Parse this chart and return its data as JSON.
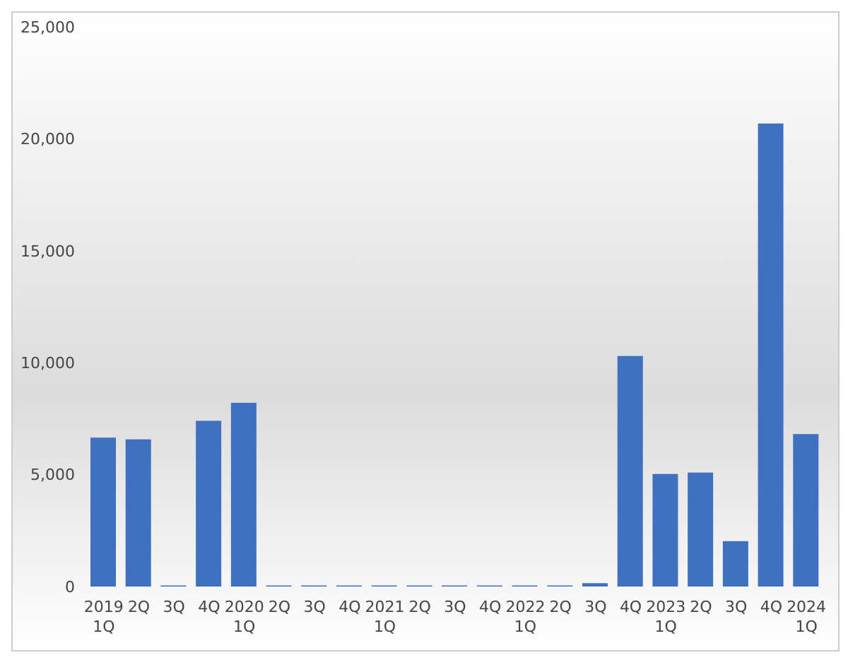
{
  "chart_data": {
    "type": "bar",
    "categories": [
      "2019\n1Q",
      "2Q",
      "3Q",
      "4Q",
      "2020\n1Q",
      "2Q",
      "3Q",
      "4Q",
      "2021\n1Q",
      "2Q",
      "3Q",
      "4Q",
      "2022\n1Q",
      "2Q",
      "3Q",
      "4Q",
      "2023\n1Q",
      "2Q",
      "3Q",
      "4Q",
      "2024\n1Q"
    ],
    "values": [
      6650,
      6570,
      50,
      7400,
      8210,
      50,
      50,
      50,
      50,
      50,
      50,
      50,
      50,
      50,
      150,
      10300,
      5030,
      5090,
      2030,
      20680,
      6810
    ],
    "color": "#4070c0",
    "ylim": [
      0,
      25000
    ],
    "yticks": [
      0,
      {
        "value": 5000,
        "label": "5,000"
      },
      {
        "value": 10000,
        "label": "10,000"
      },
      {
        "value": 15000,
        "label": "15,000"
      },
      {
        "value": 20000,
        "label": "20,000"
      },
      {
        "value": 25000,
        "label": "25,000"
      }
    ],
    "grid": false
  }
}
